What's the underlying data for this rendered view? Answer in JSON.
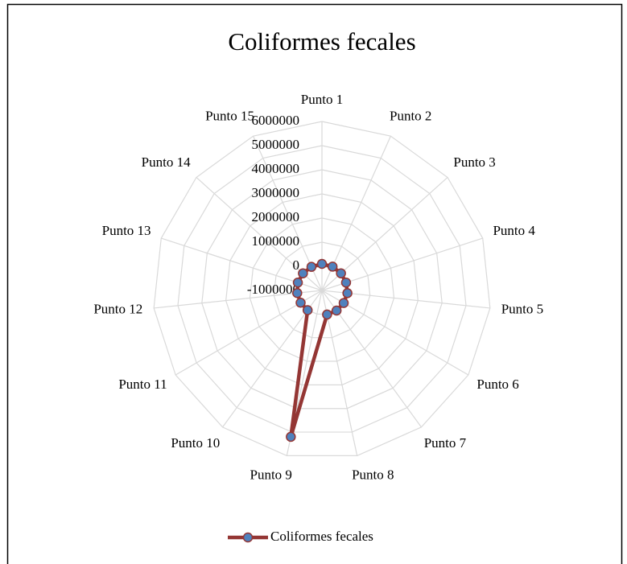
{
  "chart_data": {
    "type": "radar",
    "title": "Coliformes fecales",
    "categories": [
      "Punto 1",
      "Punto 2",
      "Punto 3",
      "Punto 4",
      "Punto 5",
      "Punto 6",
      "Punto 7",
      "Punto 8",
      "Punto 9",
      "Punto 10",
      "Punto 11",
      "Punto 12",
      "Punto 13",
      "Punto 14",
      "Punto 15"
    ],
    "series": [
      {
        "name": "Coliformes fecales",
        "color": "#943634",
        "marker_color": "#4f81bd",
        "values": [
          100000,
          80000,
          60000,
          50000,
          60000,
          40000,
          30000,
          20000,
          5200000,
          10000,
          20000,
          30000,
          50000,
          60000,
          70000
        ]
      }
    ],
    "ylim": [
      -1000000,
      6000000
    ],
    "yticks": [
      -1000000,
      0,
      1000000,
      2000000,
      3000000,
      4000000,
      5000000,
      6000000
    ],
    "grid": true,
    "legend": "bottom"
  }
}
